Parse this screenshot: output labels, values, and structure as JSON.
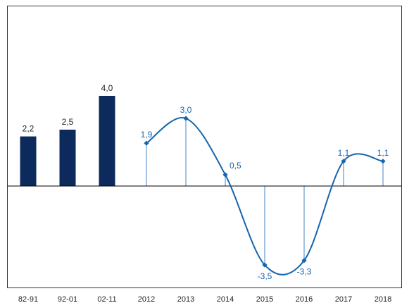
{
  "chart_data": {
    "type": "bar",
    "title": "",
    "xlabel": "",
    "ylabel": "",
    "ylim": [
      -4.5,
      8.0
    ],
    "grid": false,
    "legend": "none",
    "colors": {
      "bars": "#0d2a5c",
      "line": "#1565b0",
      "axis": "#000000",
      "frame": "#333333"
    },
    "series": [
      {
        "type": "bar",
        "categories": [
          "82-91",
          "92-01",
          "02-11"
        ],
        "values": [
          2.2,
          2.5,
          4.0
        ],
        "labels": [
          "2,2",
          "2,5",
          "4,0"
        ]
      },
      {
        "type": "line",
        "smooth": true,
        "drop_lines": true,
        "categories": [
          "2012",
          "2013",
          "2014",
          "2015",
          "2016",
          "2017",
          "2018"
        ],
        "values": [
          1.9,
          3.0,
          0.5,
          -3.5,
          -3.3,
          1.1,
          1.1
        ],
        "labels": [
          "1,9",
          "3,0",
          "0,5",
          "-3,5",
          "-3,3",
          "1,1",
          "1,1"
        ]
      }
    ]
  }
}
